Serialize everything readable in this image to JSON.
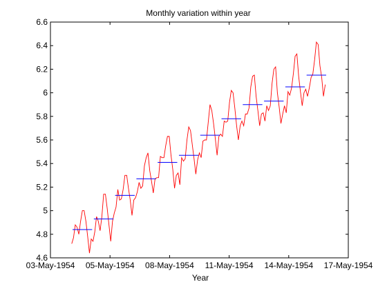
{
  "chart_data": {
    "type": "line",
    "title": "Monthly variation within year",
    "xlabel": "Year",
    "ylabel": "",
    "ylim": [
      4.6,
      6.6
    ],
    "y_ticks": [
      "4.6",
      "4.8",
      "5",
      "5.2",
      "5.4",
      "5.6",
      "5.8",
      "6",
      "6.2",
      "6.4",
      "6.6"
    ],
    "x_ticks": [
      "03-May-1954",
      "05-May-1954",
      "08-May-1954",
      "11-May-1954",
      "14-May-1954",
      "17-May-1954"
    ],
    "x_range_years": [
      0,
      14
    ],
    "grid": false,
    "colors": {
      "monthly": "#ff0000",
      "yearly_mean": "#0000ff"
    },
    "series": [
      {
        "values": [
          4.72,
          4.77,
          4.88,
          4.86,
          4.8,
          4.91,
          5.0,
          5.0,
          4.91,
          4.78,
          4.64,
          4.76,
          4.74,
          4.82,
          4.95,
          4.91,
          4.83,
          4.95,
          5.14,
          5.14,
          5.02,
          4.88,
          4.74,
          4.91,
          4.98,
          5.03,
          5.18,
          5.09,
          5.1,
          5.18,
          5.3,
          5.3,
          5.19,
          5.09,
          4.96,
          5.09,
          5.11,
          5.16,
          5.24,
          5.19,
          5.21,
          5.38,
          5.45,
          5.49,
          5.34,
          5.25,
          5.15,
          5.27,
          5.28,
          5.28,
          5.46,
          5.45,
          5.45,
          5.55,
          5.63,
          5.63,
          5.47,
          5.35,
          5.19,
          5.3,
          5.32,
          5.22,
          5.45,
          5.42,
          5.44,
          5.6,
          5.71,
          5.68,
          5.56,
          5.44,
          5.31,
          5.43,
          5.49,
          5.45,
          5.59,
          5.6,
          5.6,
          5.75,
          5.9,
          5.85,
          5.74,
          5.61,
          5.47,
          5.63,
          5.65,
          5.63,
          5.76,
          5.75,
          5.76,
          5.92,
          6.02,
          6.0,
          5.87,
          5.72,
          5.6,
          5.72,
          5.76,
          5.72,
          5.82,
          5.82,
          5.87,
          6.05,
          6.14,
          6.15,
          5.97,
          5.85,
          5.72,
          5.82,
          5.83,
          5.76,
          5.89,
          5.85,
          5.89,
          6.08,
          6.2,
          6.22,
          6.0,
          5.88,
          5.74,
          5.82,
          5.89,
          5.83,
          6.01,
          5.98,
          6.04,
          6.16,
          6.31,
          6.33,
          6.14,
          6.01,
          5.89,
          6.0,
          6.03,
          5.97,
          6.04,
          6.13,
          6.16,
          6.28,
          6.43,
          6.41,
          6.23,
          6.13,
          5.97,
          6.07
        ]
      },
      {
        "values": [
          4.84,
          4.93,
          5.13,
          5.27,
          5.41,
          5.47,
          5.64,
          5.78,
          5.9,
          5.93,
          6.05,
          6.15
        ]
      }
    ]
  }
}
